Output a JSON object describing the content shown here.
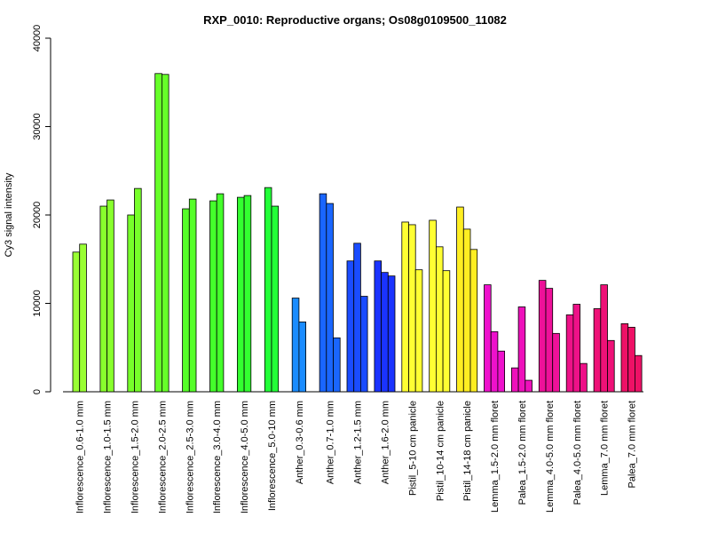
{
  "chart_data": {
    "type": "bar",
    "title": "RXP_0010: Reproductive organs; Os08g0109500_11082",
    "ylabel": "Cy3 signal intensity",
    "xlabel": "",
    "ylim": [
      0,
      40000
    ],
    "yticks": [
      0,
      10000,
      20000,
      30000,
      40000
    ],
    "grid": false,
    "legend": "none",
    "groups": [
      {
        "label": "Inflorescence_0.6-1.0 mm",
        "color": "#99ff33",
        "values": [
          15800,
          16700
        ]
      },
      {
        "label": "Inflorescence_1.0-1.5 mm",
        "color": "#88ff2d",
        "values": [
          21000,
          21700
        ]
      },
      {
        "label": "Inflorescence_1.5-2.0 mm",
        "color": "#77ff2a",
        "values": [
          20000,
          23000
        ]
      },
      {
        "label": "Inflorescence_2.0-2.5 mm",
        "color": "#66ff29",
        "values": [
          36000,
          35900
        ]
      },
      {
        "label": "Inflorescence_2.5-3.0 mm",
        "color": "#55ff29",
        "values": [
          20700,
          21800
        ]
      },
      {
        "label": "Inflorescence_3.0-4.0 mm",
        "color": "#44ff2b",
        "values": [
          21600,
          22400
        ]
      },
      {
        "label": "Inflorescence_4.0-5.0 mm",
        "color": "#33ff30",
        "values": [
          22000,
          22200
        ]
      },
      {
        "label": "Inflorescence_5.0-10 mm",
        "color": "#22ff38",
        "values": [
          23100,
          21000
        ]
      },
      {
        "label": "Anther_0.3-0.6 mm",
        "color": "#1a8cff",
        "values": [
          10600,
          7900
        ]
      },
      {
        "label": "Anther_0.7-1.0 mm",
        "color": "#1a66ff",
        "values": [
          22400,
          21300,
          6100
        ]
      },
      {
        "label": "Anther_1.2-1.5 mm",
        "color": "#1a4cff",
        "values": [
          14800,
          16800,
          10800
        ]
      },
      {
        "label": "Anther_1.6-2.0 mm",
        "color": "#1a33ff",
        "values": [
          14800,
          13500,
          13100
        ]
      },
      {
        "label": "Pistil_5-10 cm panicle",
        "color": "#ffff33",
        "values": [
          19200,
          18900,
          13800
        ]
      },
      {
        "label": "Pistil_10-14 cm panicle",
        "color": "#ffff33",
        "values": [
          19400,
          16400,
          13700
        ]
      },
      {
        "label": "Pistil_14-18 cm panicle",
        "color": "#ffee22",
        "values": [
          20900,
          18400,
          16100
        ]
      },
      {
        "label": "Lemma_1.5-2.0 mm floret",
        "color": "#ee11cc",
        "values": [
          12100,
          6800,
          4600
        ]
      },
      {
        "label": "Palea_1.5-2.0 mm floret",
        "color": "#ee11bb",
        "values": [
          2700,
          9600,
          1300
        ]
      },
      {
        "label": "Lemma_4.0-5.0 mm floret",
        "color": "#ee1199",
        "values": [
          12600,
          11700,
          6600
        ]
      },
      {
        "label": "Palea_4.0-5.0 mm floret",
        "color": "#ee1188",
        "values": [
          8700,
          9900,
          3200
        ]
      },
      {
        "label": "Lemma_7.0 mm floret",
        "color": "#ee1177",
        "values": [
          9400,
          12100,
          5800
        ]
      },
      {
        "label": "Palea_7.0 mm floret",
        "color": "#ee1166",
        "values": [
          7700,
          7300,
          4100
        ]
      }
    ]
  }
}
